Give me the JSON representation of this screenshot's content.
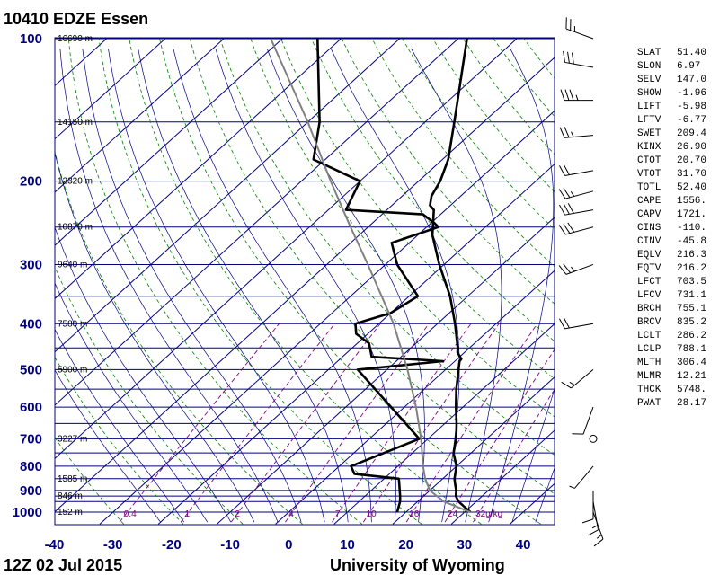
{
  "station_title": "10410 EDZE Essen",
  "time_label": "12Z 02 Jul 2015",
  "source_label": "University of Wyoming",
  "colors": {
    "isobar": "#000080",
    "isotherm": "#000080",
    "dry_adiabat": "#008000",
    "moist_adiabat": "#000080",
    "mixing_ratio": "#800080",
    "temperature": "#000000",
    "dewpoint": "#000000",
    "parcel": "#808080"
  },
  "chart_data": {
    "type": "line",
    "diagram": "skew-t log-p",
    "title": "10410 EDZE Essen",
    "xlim": [
      -40,
      45
    ],
    "ylim": [
      1050,
      100
    ],
    "y_scale": "log",
    "x_ticks": [
      -40,
      -30,
      -20,
      -10,
      0,
      10,
      20,
      30,
      40
    ],
    "pressure_labels": [
      100,
      200,
      300,
      400,
      500,
      600,
      700,
      800,
      900,
      1000
    ],
    "isobars": [
      100,
      150,
      200,
      250,
      300,
      350,
      400,
      450,
      500,
      550,
      600,
      650,
      700,
      750,
      800,
      850,
      900,
      925,
      950,
      1000
    ],
    "height_labels": [
      {
        "p": 100,
        "text": "16690 m"
      },
      {
        "p": 150,
        "text": "14150 m"
      },
      {
        "p": 200,
        "text": "12320 m"
      },
      {
        "p": 250,
        "text": "10870 m"
      },
      {
        "p": 300,
        "text": "9640 m"
      },
      {
        "p": 400,
        "text": "7580 m"
      },
      {
        "p": 500,
        "text": "5900 m"
      },
      {
        "p": 700,
        "text": "3227 m"
      },
      {
        "p": 850,
        "text": "1585 m"
      },
      {
        "p": 925,
        "text": "846 m"
      },
      {
        "p": 1000,
        "text": "152 m"
      }
    ],
    "mixing_ratio_labels": [
      "0.4",
      "1",
      "2",
      "4",
      "7",
      "10",
      "16",
      "24",
      "32g/kg"
    ],
    "mixing_ratio_values": [
      0.4,
      1,
      2,
      4,
      7,
      10,
      16,
      24,
      32
    ],
    "series": [
      {
        "name": "",
        "role": "temperature",
        "points": [
          [
            1000,
            31.0
          ],
          [
            975,
            29.0
          ],
          [
            950,
            27.0
          ],
          [
            925,
            25.5
          ],
          [
            900,
            24.5
          ],
          [
            870,
            23.0
          ],
          [
            850,
            22.0
          ],
          [
            800,
            20.0
          ],
          [
            750,
            17.0
          ],
          [
            700,
            14.8
          ],
          [
            650,
            12.0
          ],
          [
            600,
            8.8
          ],
          [
            550,
            5.5
          ],
          [
            500,
            2.2
          ],
          [
            480,
            0.8
          ],
          [
            475,
            0.7
          ],
          [
            460,
            -1.2
          ],
          [
            450,
            -2.0
          ],
          [
            400,
            -7.0
          ],
          [
            350,
            -13.0
          ],
          [
            300,
            -20.8
          ],
          [
            260,
            -27.5
          ],
          [
            230,
            -32.0
          ],
          [
            225,
            -33.5
          ],
          [
            215,
            -35.0
          ],
          [
            200,
            -36.3
          ],
          [
            180,
            -39.0
          ],
          [
            150,
            -45.0
          ],
          [
            100,
            -58.5
          ]
        ]
      },
      {
        "name": "",
        "role": "dewpoint",
        "points": [
          [
            1000,
            18.5
          ],
          [
            950,
            17.0
          ],
          [
            925,
            16.0
          ],
          [
            860,
            13.0
          ],
          [
            850,
            12.5
          ],
          [
            830,
            4.0
          ],
          [
            800,
            2.0
          ],
          [
            700,
            8.5
          ],
          [
            500,
            -15.0
          ],
          [
            480,
            -2.0
          ],
          [
            470,
            -15.0
          ],
          [
            440,
            -18.0
          ],
          [
            420,
            -22.0
          ],
          [
            400,
            -24.0
          ],
          [
            380,
            -20.0
          ],
          [
            350,
            -18.5
          ],
          [
            300,
            -28.0
          ],
          [
            270,
            -33.0
          ],
          [
            250,
            -28.0
          ],
          [
            245,
            -29.5
          ],
          [
            235,
            -33.0
          ],
          [
            230,
            -47.0
          ],
          [
            200,
            -50.0
          ],
          [
            180,
            -62.0
          ],
          [
            150,
            -68.0
          ],
          [
            100,
            -84.0
          ]
        ]
      },
      {
        "name": "",
        "role": "parcel",
        "points": [
          [
            1000,
            31.0
          ],
          [
            950,
            24.5
          ],
          [
            900,
            20.0
          ],
          [
            850,
            17.0
          ],
          [
            800,
            14.3
          ],
          [
            700,
            8.8
          ],
          [
            600,
            2.0
          ],
          [
            500,
            -6.5
          ],
          [
            400,
            -17.5
          ],
          [
            300,
            -33.0
          ],
          [
            250,
            -43.0
          ],
          [
            200,
            -55.0
          ],
          [
            150,
            -70.0
          ],
          [
            100,
            -92.0
          ]
        ]
      }
    ],
    "indices": [
      {
        "label": "SLAT",
        "value": "51.40"
      },
      {
        "label": "SLON",
        "value": "6.97"
      },
      {
        "label": "SELV",
        "value": "147.0"
      },
      {
        "label": "SHOW",
        "value": "-1.96"
      },
      {
        "label": "LIFT",
        "value": "-5.98"
      },
      {
        "label": "LFTV",
        "value": "-6.77"
      },
      {
        "label": "SWET",
        "value": "209.4"
      },
      {
        "label": "KINX",
        "value": "26.90"
      },
      {
        "label": "CTOT",
        "value": "20.70"
      },
      {
        "label": "VTOT",
        "value": "31.70"
      },
      {
        "label": "TOTL",
        "value": "52.40"
      },
      {
        "label": "CAPE",
        "value": "1556."
      },
      {
        "label": "CAPV",
        "value": "1721."
      },
      {
        "label": "CINS",
        "value": "-110."
      },
      {
        "label": "CINV",
        "value": "-45.8"
      },
      {
        "label": "EQLV",
        "value": "216.3"
      },
      {
        "label": "EQTV",
        "value": "216.2"
      },
      {
        "label": "LFCT",
        "value": "703.5"
      },
      {
        "label": "LFCV",
        "value": "731.1"
      },
      {
        "label": "BRCH",
        "value": "755.1"
      },
      {
        "label": "BRCV",
        "value": "835.2"
      },
      {
        "label": "LCLT",
        "value": "286.2"
      },
      {
        "label": "LCLP",
        "value": "788.1"
      },
      {
        "label": "MLTH",
        "value": "306.4"
      },
      {
        "label": "MLMR",
        "value": "12.21"
      },
      {
        "label": "THCK",
        "value": "5748."
      },
      {
        "label": "PWAT",
        "value": "28.17"
      }
    ],
    "wind_barbs": [
      {
        "p": 100,
        "dir": 290,
        "kt": 25
      },
      {
        "p": 115,
        "dir": 280,
        "kt": 30
      },
      {
        "p": 135,
        "dir": 270,
        "kt": 35
      },
      {
        "p": 160,
        "dir": 265,
        "kt": 25
      },
      {
        "p": 190,
        "dir": 260,
        "kt": 20
      },
      {
        "p": 210,
        "dir": 255,
        "kt": 25
      },
      {
        "p": 230,
        "dir": 260,
        "kt": 30
      },
      {
        "p": 250,
        "dir": 255,
        "kt": 30
      },
      {
        "p": 300,
        "dir": 250,
        "kt": 25
      },
      {
        "p": 400,
        "dir": 260,
        "kt": 20
      },
      {
        "p": 500,
        "dir": 230,
        "kt": 15
      },
      {
        "p": 600,
        "dir": 200,
        "kt": 10
      },
      {
        "p": 700,
        "dir": 0,
        "kt": 0
      },
      {
        "p": 800,
        "dir": 220,
        "kt": 5
      },
      {
        "p": 900,
        "dir": 180,
        "kt": 10
      },
      {
        "p": 950,
        "dir": 170,
        "kt": 15
      },
      {
        "p": 1000,
        "dir": 160,
        "kt": 15
      }
    ]
  }
}
